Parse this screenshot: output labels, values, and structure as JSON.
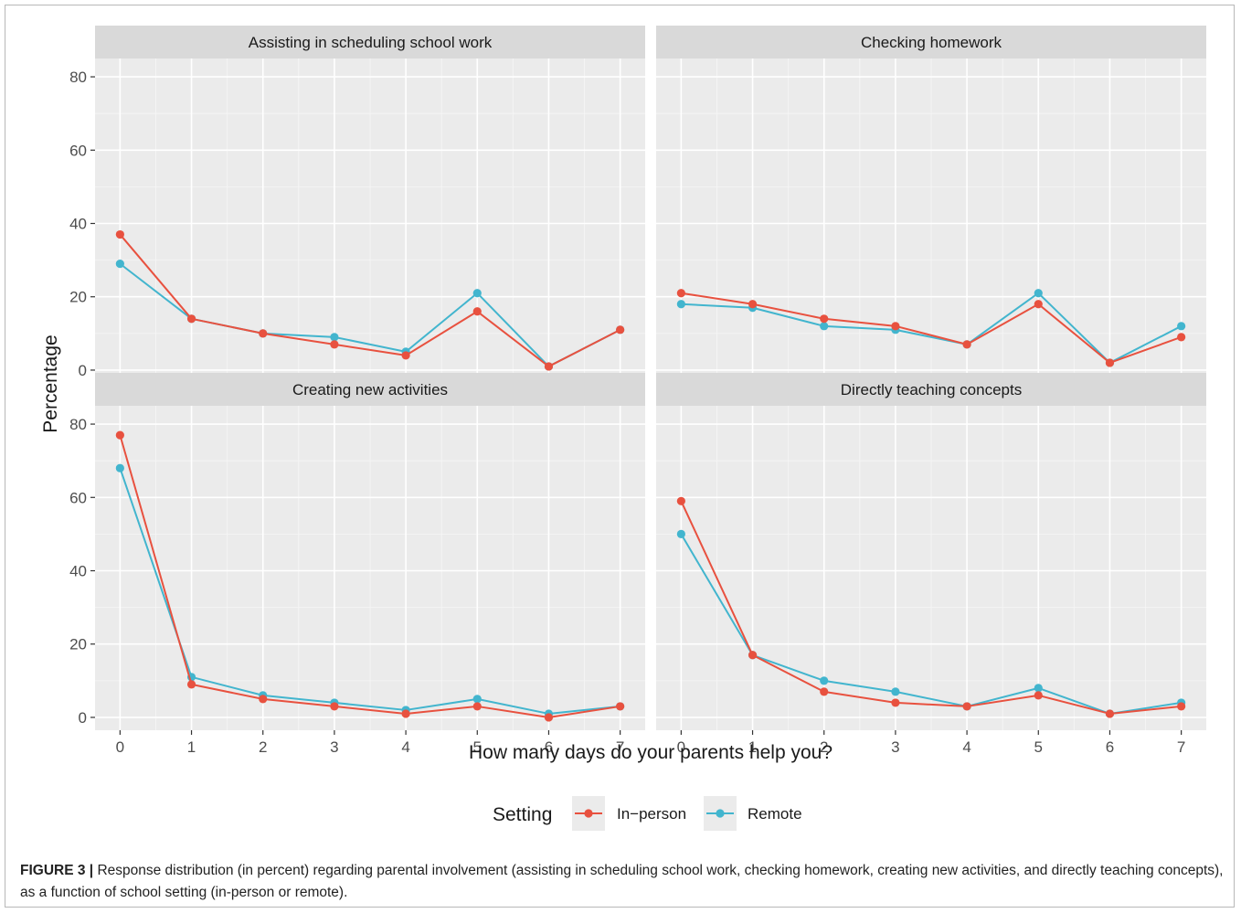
{
  "chart_data": {
    "type": "line",
    "xlabel": "How many days do your parents help you?",
    "ylabel": "Percentage",
    "x": [
      0,
      1,
      2,
      3,
      4,
      5,
      6,
      7
    ],
    "xlim": [
      -0.35,
      7.35
    ],
    "ylim": [
      -3.5,
      85
    ],
    "yticks": [
      0,
      20,
      40,
      60,
      80
    ],
    "grid": true,
    "legend": {
      "title": "Setting",
      "position": "bottom",
      "entries": [
        "In−person",
        "Remote"
      ]
    },
    "series_colors": {
      "In−person": "#e8513f",
      "Remote": "#42b5ce"
    },
    "panels": [
      {
        "title": "Assisting in scheduling school work",
        "series": [
          {
            "name": "In−person",
            "values": [
              37,
              14,
              10,
              7,
              4,
              16,
              1,
              11
            ]
          },
          {
            "name": "Remote",
            "values": [
              29,
              14,
              10,
              9,
              5,
              21,
              1,
              11
            ]
          }
        ]
      },
      {
        "title": "Checking homework",
        "series": [
          {
            "name": "In−person",
            "values": [
              21,
              18,
              14,
              12,
              7,
              18,
              2,
              9
            ]
          },
          {
            "name": "Remote",
            "values": [
              18,
              17,
              12,
              11,
              7,
              21,
              2,
              12
            ]
          }
        ]
      },
      {
        "title": "Creating new activities",
        "series": [
          {
            "name": "In−person",
            "values": [
              77,
              9,
              5,
              3,
              1,
              3,
              0,
              3
            ]
          },
          {
            "name": "Remote",
            "values": [
              68,
              11,
              6,
              4,
              2,
              5,
              1,
              3
            ]
          }
        ]
      },
      {
        "title": "Directly teaching concepts",
        "series": [
          {
            "name": "In−person",
            "values": [
              59,
              17,
              7,
              4,
              3,
              6,
              1,
              3
            ]
          },
          {
            "name": "Remote",
            "values": [
              50,
              17,
              10,
              7,
              3,
              8,
              1,
              4
            ]
          }
        ]
      }
    ]
  },
  "caption": {
    "label": "FIGURE 3 |",
    "text": " Response distribution (in percent) regarding parental involvement (assisting in scheduling school work, checking homework, creating new activities, and directly teaching concepts), as a function of school setting (in-person or remote)."
  }
}
